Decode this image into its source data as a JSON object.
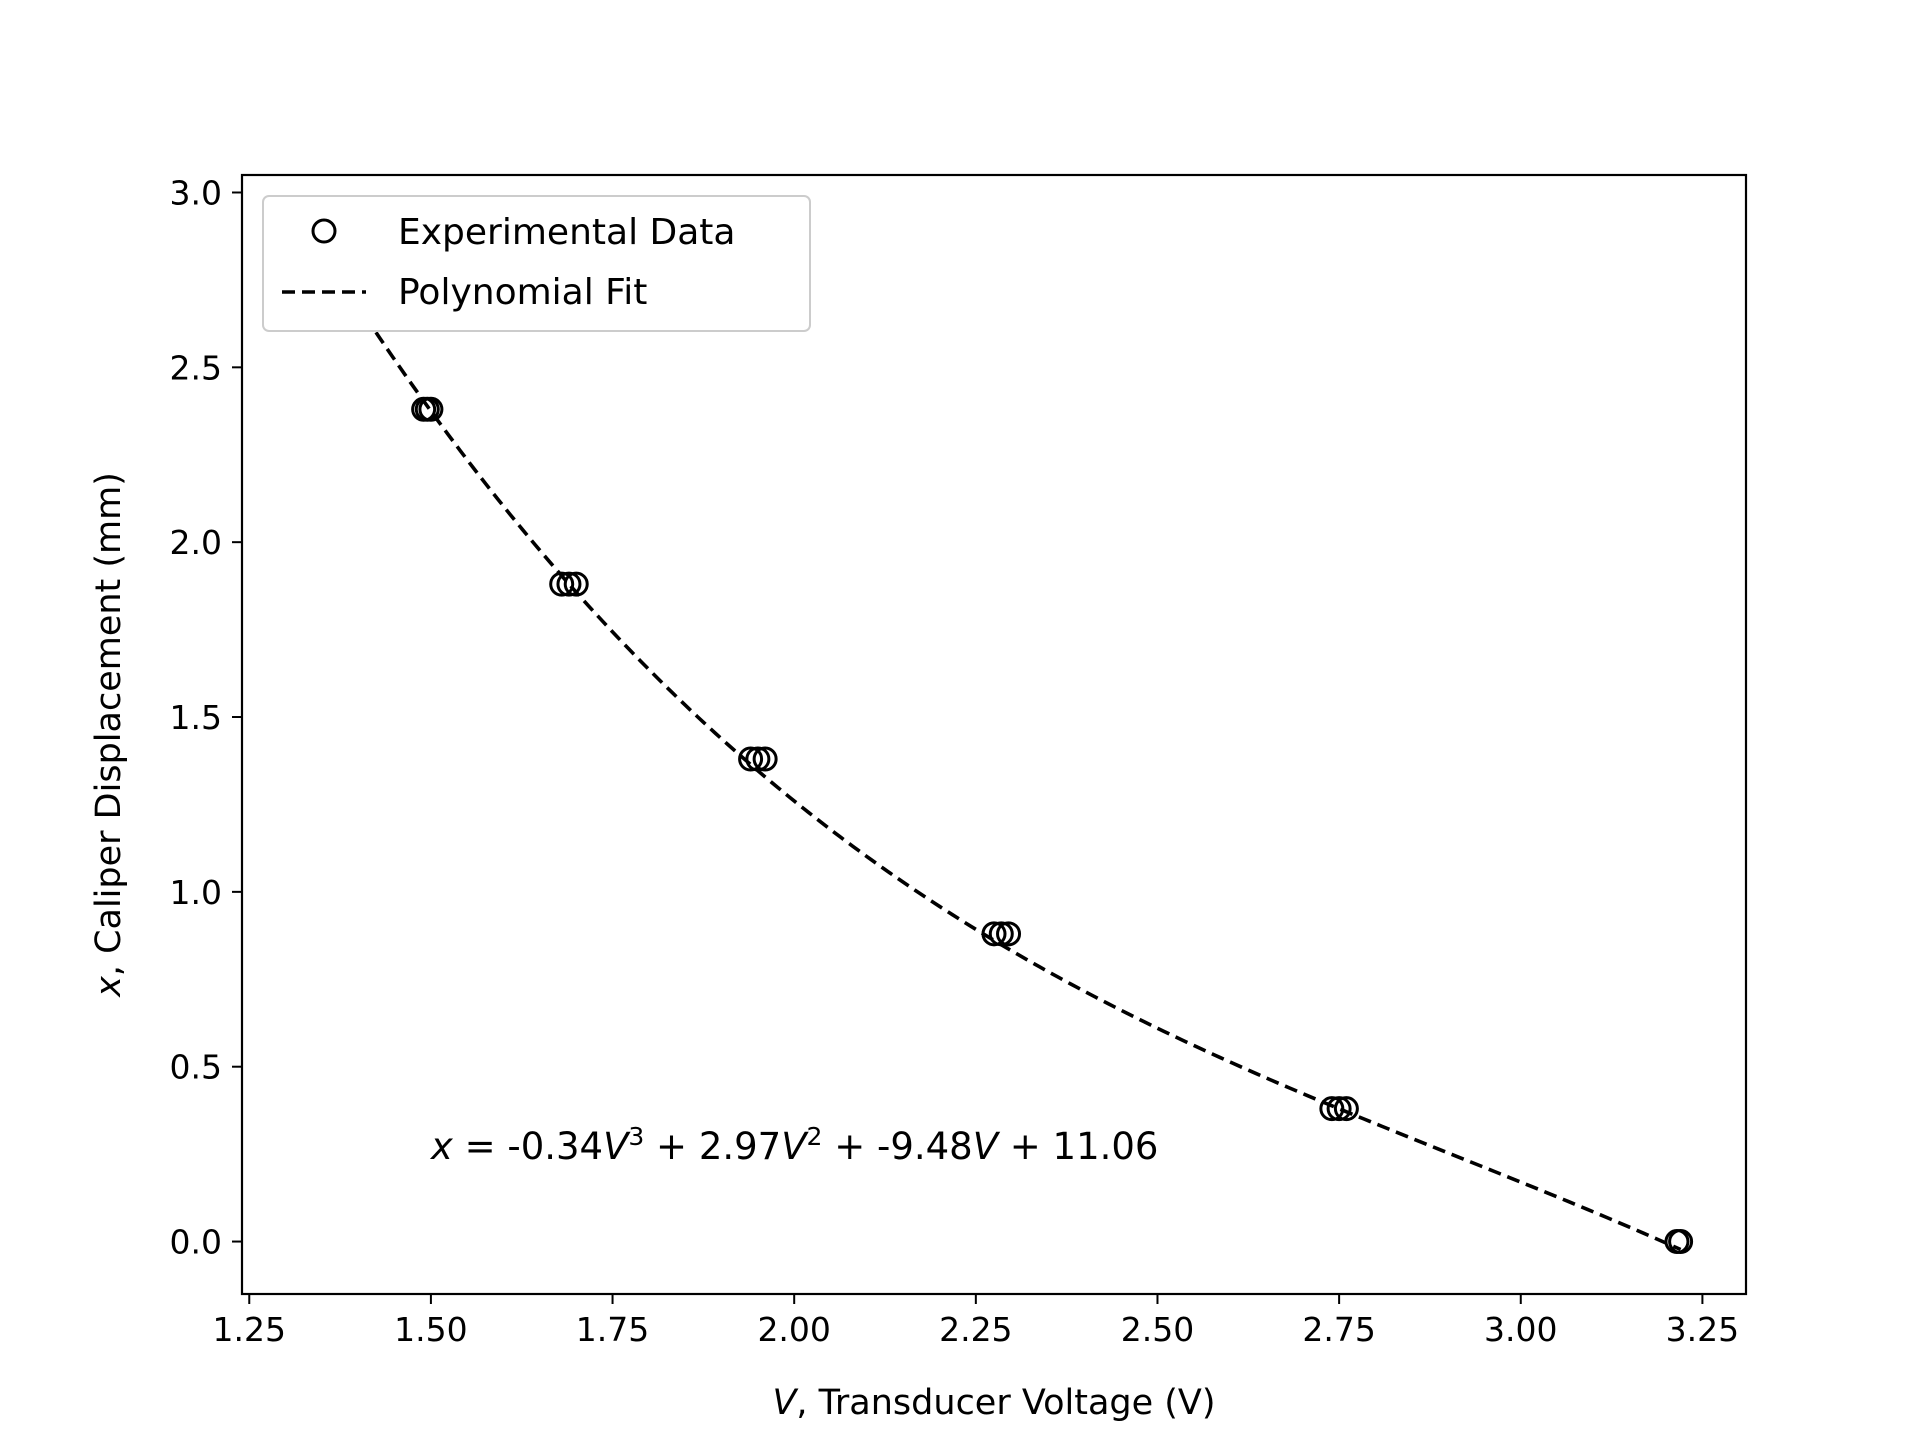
{
  "chart_data": {
    "type": "scatter",
    "xlabel_var": "V",
    "xlabel_rest": ", Transducer Voltage (V)",
    "ylabel_var": "x",
    "ylabel_rest": ", Caliper Displacement (mm)",
    "xlim": [
      1.24,
      3.31
    ],
    "ylim": [
      -0.15,
      3.05
    ],
    "x_ticks": [
      1.25,
      1.5,
      1.75,
      2.0,
      2.25,
      2.5,
      2.75,
      3.0,
      3.25
    ],
    "x_tick_labels": [
      "1.25",
      "1.50",
      "1.75",
      "2.00",
      "2.25",
      "2.50",
      "2.75",
      "3.00",
      "3.25"
    ],
    "y_ticks": [
      0.0,
      0.5,
      1.0,
      1.5,
      2.0,
      2.5,
      3.0
    ],
    "y_tick_labels": [
      "0.0",
      "0.5",
      "1.0",
      "1.5",
      "2.0",
      "2.5",
      "3.0"
    ],
    "grid": false,
    "legend_position": "upper-left",
    "series": [
      {
        "name": "Experimental Data",
        "kind": "scatter",
        "marker": "open-circle",
        "color": "#000000",
        "x": [
          1.335,
          1.342,
          1.348,
          1.49,
          1.495,
          1.5,
          1.68,
          1.69,
          1.7,
          1.94,
          1.95,
          1.96,
          2.275,
          2.285,
          2.295,
          2.74,
          2.75,
          2.76,
          3.215,
          3.22
        ],
        "y": [
          2.88,
          2.88,
          2.88,
          2.38,
          2.38,
          2.38,
          1.88,
          1.88,
          1.88,
          1.38,
          1.38,
          1.38,
          0.88,
          0.88,
          0.88,
          0.38,
          0.38,
          0.38,
          0.0,
          0.0
        ]
      },
      {
        "name": "Polynomial Fit",
        "kind": "line",
        "style": "dashed",
        "color": "#000000",
        "coefficients": [
          -0.34,
          2.97,
          -9.48,
          11.06
        ],
        "x_range": [
          1.335,
          3.22
        ]
      }
    ],
    "annotation": {
      "x": 1.5,
      "y": 0.27,
      "parts": [
        {
          "text": "x",
          "italic": true
        },
        {
          "text": " = -0.34"
        },
        {
          "text": "V",
          "italic": true
        },
        {
          "text": "3",
          "sup": true
        },
        {
          "text": " + 2.97"
        },
        {
          "text": "V",
          "italic": true
        },
        {
          "text": "2",
          "sup": true
        },
        {
          "text": " + -9.48"
        },
        {
          "text": "V",
          "italic": true
        },
        {
          "text": " + 11.06"
        }
      ]
    }
  }
}
